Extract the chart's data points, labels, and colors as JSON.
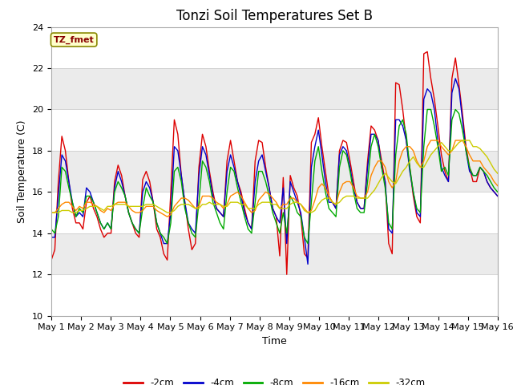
{
  "title": "Tonzi Soil Temperatures Set B",
  "xlabel": "Time",
  "ylabel": "Soil Temperature (C)",
  "ylim": [
    10,
    24
  ],
  "xlim": [
    0,
    15
  ],
  "annotation": "TZ_fmet",
  "legend": [
    "-2cm",
    "-4cm",
    "-8cm",
    "-16cm",
    "-32cm"
  ],
  "line_colors": [
    "#dd0000",
    "#0000cc",
    "#00aa00",
    "#ff8800",
    "#cccc00"
  ],
  "bg_color": "#e8e8e8",
  "plot_bg": "#f0f0f0",
  "title_fontsize": 12,
  "axis_fontsize": 9,
  "tick_fontsize": 8,
  "xtick_labels": [
    "May 1",
    "May 2",
    "May 3",
    "May 4",
    "May 5",
    "May 6",
    "May 7",
    "May 8",
    "May 9",
    "May 10",
    "May 11",
    "May 12",
    "May 13",
    "May 14",
    "May 15",
    "May 16"
  ],
  "ytick_values": [
    10,
    12,
    14,
    16,
    18,
    20,
    22,
    24
  ],
  "points_per_day": 8,
  "series": {
    "m2cm": [
      12.7,
      13.2,
      16.5,
      18.7,
      18.0,
      16.5,
      15.2,
      14.5,
      14.5,
      14.2,
      15.5,
      15.8,
      15.2,
      14.8,
      14.2,
      13.8,
      14.0,
      14.0,
      16.5,
      17.3,
      16.8,
      15.8,
      15.0,
      14.5,
      14.0,
      13.8,
      16.6,
      17.0,
      16.5,
      15.5,
      14.2,
      13.8,
      13.0,
      12.7,
      16.0,
      19.5,
      18.8,
      16.8,
      15.5,
      14.2,
      13.2,
      13.5,
      17.2,
      18.8,
      18.2,
      17.0,
      16.0,
      15.2,
      15.0,
      14.8,
      17.5,
      18.5,
      17.5,
      16.5,
      16.0,
      15.2,
      14.5,
      14.2,
      17.5,
      18.5,
      18.4,
      17.2,
      16.2,
      15.2,
      14.8,
      12.9,
      16.7,
      12.0,
      16.8,
      16.2,
      15.8,
      14.8,
      13.0,
      12.8,
      18.4,
      18.8,
      19.6,
      18.2,
      17.0,
      15.8,
      15.5,
      15.2,
      18.0,
      18.5,
      18.4,
      17.5,
      16.5,
      15.5,
      15.2,
      15.2,
      17.5,
      19.2,
      19.0,
      18.5,
      17.5,
      16.5,
      13.5,
      13.0,
      21.3,
      21.2,
      20.0,
      18.5,
      17.2,
      15.8,
      14.8,
      14.5,
      22.7,
      22.8,
      21.5,
      20.5,
      19.2,
      17.8,
      17.0,
      16.5,
      21.5,
      22.5,
      21.2,
      19.8,
      18.2,
      17.2,
      16.5,
      16.5,
      17.2,
      17.0,
      16.5,
      16.2,
      16.0,
      15.8
    ],
    "m4cm": [
      13.8,
      13.8,
      15.8,
      17.8,
      17.5,
      16.5,
      15.5,
      14.8,
      15.0,
      14.8,
      16.2,
      16.0,
      15.5,
      15.0,
      14.5,
      14.2,
      14.5,
      14.2,
      16.2,
      17.0,
      16.5,
      15.8,
      15.0,
      14.5,
      14.2,
      14.0,
      16.0,
      16.5,
      16.2,
      15.5,
      14.5,
      14.0,
      13.5,
      13.5,
      15.0,
      18.2,
      18.0,
      16.8,
      15.5,
      14.5,
      14.2,
      14.0,
      16.8,
      18.2,
      17.8,
      16.8,
      15.8,
      15.2,
      15.0,
      14.8,
      17.0,
      17.8,
      17.2,
      16.5,
      15.8,
      15.0,
      14.5,
      14.2,
      16.5,
      17.5,
      17.8,
      17.0,
      16.2,
      15.2,
      14.8,
      14.5,
      16.2,
      13.5,
      16.5,
      16.0,
      15.5,
      15.0,
      13.8,
      12.5,
      17.2,
      18.2,
      19.0,
      17.8,
      16.5,
      15.5,
      15.5,
      15.2,
      17.8,
      18.2,
      18.0,
      17.2,
      16.2,
      15.5,
      15.2,
      15.2,
      17.2,
      18.8,
      18.8,
      18.5,
      17.2,
      16.5,
      14.2,
      14.0,
      19.5,
      19.5,
      19.2,
      18.5,
      17.0,
      16.0,
      15.0,
      14.8,
      20.5,
      21.0,
      20.8,
      20.0,
      18.5,
      17.2,
      16.8,
      16.5,
      20.8,
      21.5,
      21.0,
      19.5,
      18.0,
      17.0,
      16.8,
      16.8,
      17.2,
      17.0,
      16.5,
      16.2,
      16.0,
      15.8
    ],
    "m8cm": [
      14.2,
      14.0,
      14.8,
      17.2,
      17.0,
      16.2,
      15.5,
      14.8,
      15.2,
      15.0,
      15.8,
      15.8,
      15.5,
      15.0,
      14.5,
      14.2,
      14.5,
      14.2,
      16.0,
      16.5,
      16.2,
      15.8,
      15.0,
      14.5,
      14.2,
      14.0,
      15.2,
      16.2,
      15.8,
      15.5,
      14.5,
      14.0,
      13.8,
      13.5,
      14.5,
      17.0,
      17.2,
      16.5,
      15.2,
      14.5,
      14.0,
      13.8,
      15.5,
      17.5,
      17.2,
      16.5,
      15.5,
      15.0,
      14.5,
      14.2,
      16.0,
      17.2,
      17.0,
      16.2,
      15.5,
      14.8,
      14.2,
      14.0,
      15.5,
      17.0,
      17.0,
      16.5,
      15.8,
      15.0,
      14.5,
      14.0,
      15.0,
      14.0,
      15.8,
      15.5,
      15.0,
      14.8,
      13.8,
      13.5,
      15.5,
      17.5,
      18.2,
      17.0,
      16.0,
      15.2,
      15.0,
      14.8,
      17.2,
      18.0,
      17.8,
      17.0,
      16.0,
      15.2,
      15.0,
      15.0,
      16.5,
      18.2,
      18.8,
      18.2,
      17.2,
      16.2,
      14.5,
      14.2,
      17.8,
      19.2,
      19.5,
      18.8,
      17.2,
      16.0,
      15.2,
      15.0,
      18.2,
      20.0,
      20.0,
      19.2,
      18.2,
      17.0,
      17.2,
      16.8,
      19.5,
      20.0,
      19.8,
      19.0,
      18.0,
      17.2,
      16.8,
      16.8,
      17.2,
      17.0,
      16.8,
      16.5,
      16.2,
      16.0
    ],
    "m16cm": [
      15.0,
      15.0,
      15.2,
      15.4,
      15.5,
      15.5,
      15.3,
      15.1,
      15.3,
      15.2,
      15.5,
      15.5,
      15.4,
      15.3,
      15.1,
      15.0,
      15.2,
      15.1,
      15.4,
      15.5,
      15.5,
      15.5,
      15.3,
      15.1,
      15.0,
      15.0,
      15.1,
      15.3,
      15.3,
      15.3,
      15.1,
      15.0,
      14.9,
      14.8,
      14.9,
      15.3,
      15.5,
      15.7,
      15.7,
      15.6,
      15.4,
      15.2,
      15.3,
      15.8,
      15.8,
      15.8,
      15.7,
      15.5,
      15.4,
      15.2,
      15.4,
      15.8,
      15.9,
      16.0,
      15.8,
      15.5,
      15.2,
      15.0,
      15.1,
      15.6,
      15.8,
      16.0,
      15.9,
      15.7,
      15.5,
      15.2,
      15.4,
      15.4,
      15.7,
      15.7,
      15.5,
      15.4,
      15.2,
      15.0,
      15.1,
      15.6,
      16.2,
      16.4,
      16.2,
      15.8,
      15.5,
      15.4,
      16.0,
      16.4,
      16.5,
      16.5,
      16.2,
      15.8,
      15.7,
      15.7,
      16.0,
      16.8,
      17.2,
      17.5,
      17.5,
      17.2,
      16.5,
      16.2,
      16.5,
      17.5,
      18.0,
      18.2,
      18.2,
      18.0,
      17.5,
      17.2,
      17.5,
      18.2,
      18.5,
      18.5,
      18.5,
      18.2,
      18.0,
      17.8,
      18.0,
      18.5,
      18.5,
      18.5,
      18.2,
      17.8,
      17.5,
      17.5,
      17.5,
      17.2,
      17.0,
      16.8,
      16.5,
      16.3
    ],
    "m32cm": [
      15.0,
      15.0,
      15.0,
      15.1,
      15.1,
      15.1,
      15.0,
      15.0,
      15.1,
      15.1,
      15.2,
      15.3,
      15.3,
      15.3,
      15.2,
      15.1,
      15.3,
      15.3,
      15.4,
      15.4,
      15.4,
      15.4,
      15.3,
      15.3,
      15.3,
      15.3,
      15.3,
      15.4,
      15.4,
      15.4,
      15.3,
      15.2,
      15.1,
      15.0,
      15.0,
      15.1,
      15.3,
      15.4,
      15.4,
      15.4,
      15.3,
      15.2,
      15.2,
      15.4,
      15.4,
      15.5,
      15.4,
      15.4,
      15.4,
      15.3,
      15.3,
      15.5,
      15.5,
      15.5,
      15.4,
      15.4,
      15.2,
      15.2,
      15.2,
      15.4,
      15.5,
      15.5,
      15.5,
      15.4,
      15.4,
      15.2,
      15.2,
      15.2,
      15.4,
      15.5,
      15.5,
      15.4,
      15.1,
      15.0,
      15.0,
      15.1,
      15.4,
      15.6,
      15.7,
      15.7,
      15.5,
      15.4,
      15.5,
      15.7,
      15.8,
      15.8,
      15.8,
      15.7,
      15.7,
      15.7,
      15.7,
      15.9,
      16.1,
      16.4,
      16.7,
      16.9,
      16.7,
      16.5,
      16.4,
      16.7,
      17.0,
      17.2,
      17.5,
      17.7,
      17.4,
      17.2,
      17.2,
      17.5,
      17.8,
      18.0,
      18.2,
      18.4,
      18.2,
      18.0,
      18.0,
      18.2,
      18.4,
      18.5,
      18.5,
      18.5,
      18.2,
      18.2,
      18.1,
      17.9,
      17.7,
      17.4,
      17.1,
      16.9
    ]
  }
}
